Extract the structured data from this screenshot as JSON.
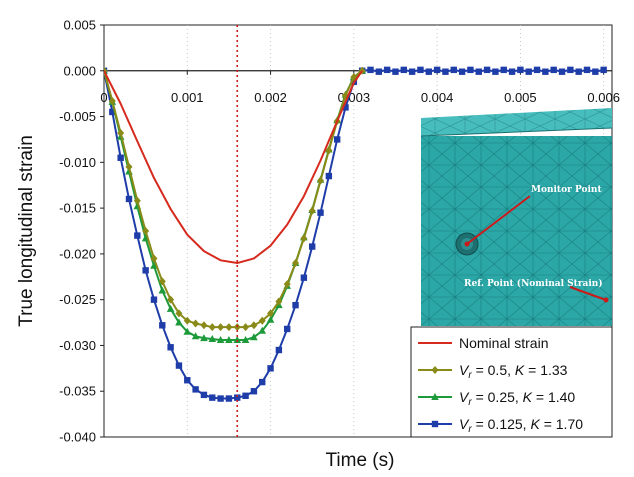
{
  "chart_data": {
    "type": "line",
    "xlabel": "Time (s)",
    "ylabel": "True longitudinal strain",
    "xlim": [
      0,
      0.0061
    ],
    "ylim": [
      -0.04,
      0.005
    ],
    "xticks": [
      0,
      0.001,
      0.002,
      0.003,
      0.004,
      0.005,
      0.006
    ],
    "xtick_labels": [
      "0",
      "0.001",
      "0.002",
      "0.003",
      "0.004",
      "0.005",
      "0.006"
    ],
    "yticks": [
      0.005,
      0.0,
      -0.005,
      -0.01,
      -0.015,
      -0.02,
      -0.025,
      -0.03,
      -0.035,
      -0.04
    ],
    "ytick_labels": [
      "0.005",
      "0.000",
      "-0.005",
      "-0.010",
      "-0.015",
      "-0.020",
      "-0.025",
      "-0.030",
      "-0.035",
      "-0.040"
    ],
    "vline_x": 0.0016,
    "grid": "vertical-dotted",
    "legend_position": "bottom-right",
    "series": [
      {
        "name": "Nominal strain",
        "legend_label": "Nominal strain",
        "color": "#d62a1e",
        "marker": "none",
        "x": [
          0,
          0.0002,
          0.0004,
          0.0006,
          0.0008,
          0.001,
          0.0012,
          0.0014,
          0.0016,
          0.0018,
          0.002,
          0.0022,
          0.0024,
          0.0026,
          0.0028,
          0.003,
          0.0031
        ],
        "y": [
          0,
          -0.0036,
          -0.0077,
          -0.0117,
          -0.0151,
          -0.0179,
          -0.0197,
          -0.0207,
          -0.021,
          -0.0205,
          -0.0191,
          -0.0168,
          -0.0137,
          -0.0098,
          -0.0055,
          -0.0013,
          0
        ]
      },
      {
        "name": "Vr = 0.5, K = 1.33",
        "legend_label": {
          "v": "V",
          "r": "r",
          "rest": " = 0.5, ",
          "k": "K",
          "val": " = 1.33"
        },
        "color": "#8a8a18",
        "marker": "diamond",
        "x": [
          0,
          0.0001,
          0.0002,
          0.0003,
          0.0004,
          0.0005,
          0.0006,
          0.0007,
          0.0008,
          0.0009,
          0.001,
          0.0011,
          0.0012,
          0.0013,
          0.0014,
          0.0015,
          0.0016,
          0.0017,
          0.0018,
          0.0019,
          0.002,
          0.0021,
          0.0022,
          0.0023,
          0.0024,
          0.0025,
          0.0026,
          0.0027,
          0.0028,
          0.0029,
          0.003,
          0.0031
        ],
        "y": [
          0,
          -0.0033,
          -0.0068,
          -0.0105,
          -0.0142,
          -0.0175,
          -0.0205,
          -0.023,
          -0.025,
          -0.0265,
          -0.0273,
          -0.0276,
          -0.0278,
          -0.028,
          -0.028,
          -0.028,
          -0.028,
          -0.028,
          -0.0278,
          -0.0273,
          -0.0265,
          -0.0252,
          -0.0233,
          -0.021,
          -0.0183,
          -0.0153,
          -0.012,
          -0.0087,
          -0.0055,
          -0.0027,
          -0.0007,
          0
        ]
      },
      {
        "name": "Vr = 0.25, K = 1.40",
        "legend_label": {
          "v": "V",
          "r": "r",
          "rest": " = 0.25, ",
          "k": "K",
          "val": " = 1.40"
        },
        "color": "#1d9a3a",
        "marker": "triangle",
        "x": [
          0,
          0.0001,
          0.0002,
          0.0003,
          0.0004,
          0.0005,
          0.0006,
          0.0007,
          0.0008,
          0.0009,
          0.001,
          0.0011,
          0.0012,
          0.0013,
          0.0014,
          0.0015,
          0.0016,
          0.0017,
          0.0018,
          0.0019,
          0.002,
          0.0021,
          0.0022,
          0.0023,
          0.0024,
          0.0025,
          0.0026,
          0.0027,
          0.0028,
          0.0029,
          0.003,
          0.0031
        ],
        "y": [
          0,
          -0.0034,
          -0.0072,
          -0.011,
          -0.0148,
          -0.0183,
          -0.0213,
          -0.024,
          -0.026,
          -0.0275,
          -0.0285,
          -0.029,
          -0.0292,
          -0.0293,
          -0.0294,
          -0.0294,
          -0.0294,
          -0.0294,
          -0.0291,
          -0.0284,
          -0.0272,
          -0.0256,
          -0.0235,
          -0.021,
          -0.0182,
          -0.0152,
          -0.0119,
          -0.0086,
          -0.0054,
          -0.0026,
          -0.0007,
          0
        ]
      },
      {
        "name": "Vr = 0.125, K = 1.70",
        "legend_label": {
          "v": "V",
          "r": "r",
          "rest": " = 0.125, ",
          "k": "K",
          "val": " = 1.70"
        },
        "color": "#1e3da8",
        "marker": "square",
        "x": [
          0,
          0.0001,
          0.0002,
          0.0003,
          0.0004,
          0.0005,
          0.0006,
          0.0007,
          0.0008,
          0.0009,
          0.001,
          0.0011,
          0.0012,
          0.0013,
          0.0014,
          0.0015,
          0.0016,
          0.0017,
          0.0018,
          0.0019,
          0.002,
          0.0021,
          0.0022,
          0.0023,
          0.0024,
          0.0025,
          0.0026,
          0.0027,
          0.0028,
          0.0029,
          0.003,
          0.0031,
          0.0032,
          0.0033,
          0.0034,
          0.0035,
          0.0036,
          0.0037,
          0.0038,
          0.0039,
          0.004,
          0.0041,
          0.0042,
          0.0043,
          0.0044,
          0.0045,
          0.0046,
          0.0047,
          0.0048,
          0.0049,
          0.005,
          0.0051,
          0.0052,
          0.0053,
          0.0054,
          0.0055,
          0.0056,
          0.0057,
          0.0058,
          0.0059,
          0.006
        ],
        "y": [
          0,
          -0.0045,
          -0.0095,
          -0.014,
          -0.018,
          -0.0218,
          -0.025,
          -0.0278,
          -0.0302,
          -0.0322,
          -0.0338,
          -0.0348,
          -0.0354,
          -0.0357,
          -0.0358,
          -0.0358,
          -0.0357,
          -0.0355,
          -0.035,
          -0.034,
          -0.0325,
          -0.0305,
          -0.0282,
          -0.0256,
          -0.0226,
          -0.0192,
          -0.0155,
          -0.0115,
          -0.0075,
          -0.004,
          -0.0012,
          0,
          0.0001,
          -0.0001,
          0.0001,
          -0.0001,
          0.0001,
          -0.0001,
          0.0001,
          -0.0001,
          0.0001,
          -0.0001,
          0.0001,
          -0.0001,
          0.0001,
          -0.0001,
          0.0001,
          -0.0001,
          0.0001,
          -0.0001,
          0.0001,
          -0.0001,
          0.0001,
          -0.0001,
          0.0001,
          -0.0001,
          0.0001,
          -0.0001,
          0.0001,
          -0.0001,
          0.0001
        ]
      }
    ],
    "inset": {
      "annotations": [
        "Monitor Point",
        "Ref. Point (Nominal Strain)"
      ],
      "mesh_color": "#2aa5a5"
    }
  }
}
